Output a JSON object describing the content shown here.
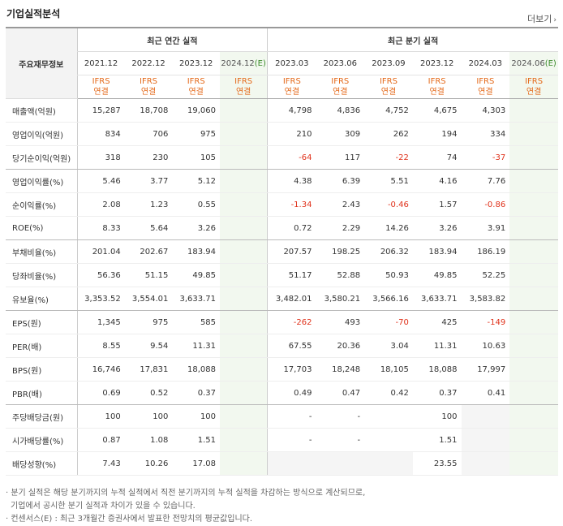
{
  "title": "기업실적분석",
  "more_label": "더보기",
  "header": {
    "row_label": "주요재무정보",
    "annual_group": "최근 연간 실적",
    "quarter_group": "최근 분기 실적",
    "annual_periods": [
      "2021.12",
      "2022.12",
      "2023.12"
    ],
    "annual_estimate": {
      "period": "2024.12",
      "mark": "(E)"
    },
    "quarter_periods": [
      "2023.03",
      "2023.06",
      "2023.09",
      "2023.12",
      "2024.03"
    ],
    "quarter_estimate": {
      "period": "2024.06",
      "mark": "(E)"
    },
    "ifrs_line1": "IFRS",
    "ifrs_line2": "연결"
  },
  "rows": [
    {
      "label": "매출액(억원)",
      "annual": [
        "15,287",
        "18,708",
        "19,060",
        ""
      ],
      "quarter": [
        "4,798",
        "4,836",
        "4,752",
        "4,675",
        "4,303",
        ""
      ]
    },
    {
      "label": "영업이익(억원)",
      "annual": [
        "834",
        "706",
        "975",
        ""
      ],
      "quarter": [
        "210",
        "309",
        "262",
        "194",
        "334",
        ""
      ]
    },
    {
      "label": "당기순이익(억원)",
      "annual": [
        "318",
        "230",
        "105",
        ""
      ],
      "quarter": [
        "-64",
        "117",
        "-22",
        "74",
        "-37",
        ""
      ]
    },
    {
      "label": "영업이익률(%)",
      "annual": [
        "5.46",
        "3.77",
        "5.12",
        ""
      ],
      "quarter": [
        "4.38",
        "6.39",
        "5.51",
        "4.16",
        "7.76",
        ""
      ]
    },
    {
      "label": "순이익률(%)",
      "annual": [
        "2.08",
        "1.23",
        "0.55",
        ""
      ],
      "quarter": [
        "-1.34",
        "2.43",
        "-0.46",
        "1.57",
        "-0.86",
        ""
      ]
    },
    {
      "label": "ROE(%)",
      "annual": [
        "8.33",
        "5.64",
        "3.26",
        ""
      ],
      "quarter": [
        "0.72",
        "2.29",
        "14.26",
        "3.26",
        "3.91",
        ""
      ]
    },
    {
      "label": "부채비율(%)",
      "annual": [
        "201.04",
        "202.67",
        "183.94",
        ""
      ],
      "quarter": [
        "207.57",
        "198.25",
        "206.32",
        "183.94",
        "186.19",
        ""
      ]
    },
    {
      "label": "당좌비율(%)",
      "annual": [
        "56.36",
        "51.15",
        "49.85",
        ""
      ],
      "quarter": [
        "51.17",
        "52.88",
        "50.93",
        "49.85",
        "52.25",
        ""
      ]
    },
    {
      "label": "유보율(%)",
      "annual": [
        "3,353.52",
        "3,554.01",
        "3,633.71",
        ""
      ],
      "quarter": [
        "3,482.01",
        "3,580.21",
        "3,566.16",
        "3,633.71",
        "3,583.82",
        ""
      ]
    },
    {
      "label": "EPS(원)",
      "annual": [
        "1,345",
        "975",
        "585",
        ""
      ],
      "quarter": [
        "-262",
        "493",
        "-70",
        "425",
        "-149",
        ""
      ]
    },
    {
      "label": "PER(배)",
      "annual": [
        "8.55",
        "9.54",
        "11.31",
        ""
      ],
      "quarter": [
        "67.55",
        "20.36",
        "3.04",
        "11.31",
        "10.63",
        ""
      ]
    },
    {
      "label": "BPS(원)",
      "annual": [
        "16,746",
        "17,831",
        "18,088",
        ""
      ],
      "quarter": [
        "17,703",
        "18,248",
        "18,105",
        "18,088",
        "17,997",
        ""
      ]
    },
    {
      "label": "PBR(배)",
      "annual": [
        "0.69",
        "0.52",
        "0.37",
        ""
      ],
      "quarter": [
        "0.49",
        "0.47",
        "0.42",
        "0.37",
        "0.41",
        ""
      ]
    },
    {
      "label": "주당배당금(원)",
      "annual": [
        "100",
        "100",
        "100",
        ""
      ],
      "quarter": [
        "-",
        "-",
        "",
        "100",
        "",
        ""
      ]
    },
    {
      "label": "시가배당률(%)",
      "annual": [
        "0.87",
        "1.08",
        "1.51",
        ""
      ],
      "quarter": [
        "-",
        "-",
        "",
        "1.51",
        "",
        ""
      ]
    },
    {
      "label": "배당성향(%)",
      "annual": [
        "7.43",
        "10.26",
        "17.08",
        ""
      ],
      "quarter": [
        "",
        "",
        "",
        "23.55",
        "",
        ""
      ]
    }
  ],
  "footnotes": [
    "· 분기 실적은 해당 분기까지의 누적 실적에서 직전 분기까지의 누적 실적을 차감하는 방식으로 계산되므로,",
    "기업에서 공시한 분기 실적과 차이가 있을 수 있습니다.",
    "· 컨센서스(E) : 최근 3개월간 증권사에서 발표한 전망치의 평균값입니다."
  ]
}
